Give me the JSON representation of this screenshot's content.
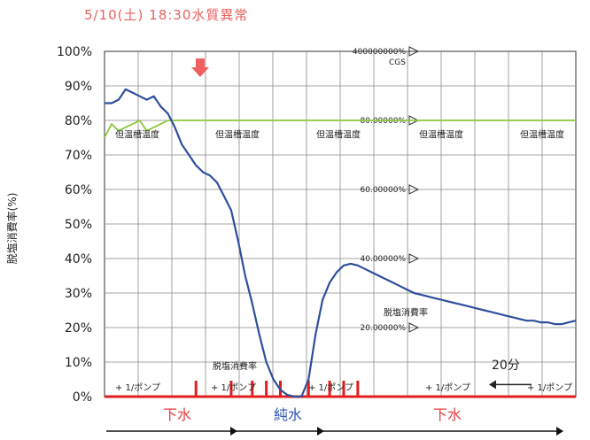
{
  "title": "5/10(土)  18:30水質異常",
  "chart_data": {
    "type": "line",
    "title": "5/10(土)  18:30水質異常",
    "ylabel": "脱塩消費率(%)",
    "ylim": [
      0,
      100
    ],
    "y_ticks": [
      "0%",
      "10%",
      "20%",
      "30%",
      "40%",
      "50%",
      "60%",
      "70%",
      "80%",
      "90%",
      "100%"
    ],
    "right_axis_ticks": [
      "400000000%",
      "80.00000%",
      "60.00000%",
      "40.00000%",
      "20.00000%"
    ],
    "right_axis_unit": "CGS",
    "grid": true,
    "series": [
      {
        "name": "脱塩消費率",
        "color": "#2f4f9c",
        "x": [
          0,
          1,
          2,
          3,
          4,
          5,
          6,
          7,
          8,
          9,
          10,
          11,
          12,
          13,
          14,
          15,
          16,
          17,
          18,
          19,
          20,
          21,
          22,
          23,
          24,
          25,
          26,
          27,
          28,
          29,
          30,
          31,
          32,
          33,
          34,
          35,
          36,
          37,
          38,
          39,
          40,
          41,
          42,
          43,
          44,
          45,
          46,
          47,
          48,
          49,
          50,
          51,
          52,
          53,
          54,
          55,
          56,
          57,
          58,
          59,
          60,
          61,
          62,
          63,
          64,
          65,
          66,
          67
        ],
        "values": [
          85,
          85,
          86,
          89,
          88,
          87,
          86,
          87,
          84,
          82,
          78,
          73,
          70,
          67,
          65,
          64,
          62,
          58,
          54,
          45,
          35,
          27,
          18,
          10,
          5,
          2,
          0.5,
          0,
          0,
          5,
          18,
          28,
          33,
          36,
          38,
          38.5,
          38,
          37,
          36,
          35,
          34,
          33,
          32,
          31,
          30,
          29.5,
          29,
          28.5,
          28,
          27.5,
          27,
          26.5,
          26,
          25.5,
          25,
          24.5,
          24,
          23.5,
          23,
          22.5,
          22,
          22,
          21.5,
          21.5,
          21,
          21,
          21.5,
          22
        ]
      },
      {
        "name": "",
        "color": "#8cc83c",
        "x": [
          0,
          1,
          2,
          3,
          4,
          5,
          6,
          7,
          8,
          9,
          10,
          11,
          12,
          67
        ],
        "values": [
          75,
          79,
          77,
          78,
          79,
          80,
          77,
          78,
          79,
          80,
          80,
          80,
          80,
          80
        ]
      }
    ],
    "annotations": {
      "top_labels": [
        "但温槽温度",
        "但温槽温度",
        "但温槽温度",
        "但温槽温度",
        "但温槽温度"
      ],
      "mid_labels": [
        "脱塩消費率",
        "脱塩消費率"
      ],
      "interval": "20分",
      "bottom_marker": "+ 1/ポンプ"
    },
    "red_pulses_x": [
      13,
      18,
      21,
      23,
      25,
      29,
      32,
      34,
      36
    ],
    "phases": [
      {
        "label": "下水",
        "color": "#e63c3c"
      },
      {
        "label": "純水",
        "color": "#2f56b4"
      },
      {
        "label": "下水",
        "color": "#e63c3c"
      }
    ],
    "colors": {
      "line_main": "#2f4f9c",
      "line_green": "#8cc83c",
      "axis_red": "#e02020",
      "arrow_red": "#f06060",
      "title": "#e8615e"
    }
  }
}
